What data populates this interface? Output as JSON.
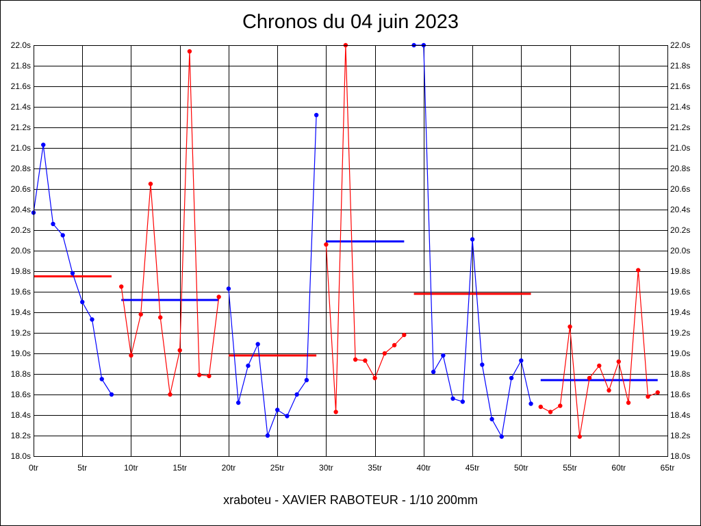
{
  "chart_data": {
    "type": "line",
    "title": "Chronos du 04 juin 2023",
    "footer": "xraboteu - XAVIER RABOTEUR - 1/10 200mm",
    "xlim": [
      0,
      65
    ],
    "ylim": [
      18.0,
      22.0
    ],
    "x_ticks": [
      {
        "value": 0,
        "label": "0tr"
      },
      {
        "value": 5,
        "label": "5tr"
      },
      {
        "value": 10,
        "label": "10tr"
      },
      {
        "value": 15,
        "label": "15tr"
      },
      {
        "value": 20,
        "label": "20tr"
      },
      {
        "value": 25,
        "label": "25tr"
      },
      {
        "value": 30,
        "label": "30tr"
      },
      {
        "value": 35,
        "label": "35tr"
      },
      {
        "value": 40,
        "label": "40tr"
      },
      {
        "value": 45,
        "label": "45tr"
      },
      {
        "value": 50,
        "label": "50tr"
      },
      {
        "value": 55,
        "label": "55tr"
      },
      {
        "value": 60,
        "label": "60tr"
      },
      {
        "value": 65,
        "label": "65tr"
      }
    ],
    "y_ticks": [
      {
        "value": 18.0,
        "label": "18.0s"
      },
      {
        "value": 18.2,
        "label": "18.2s"
      },
      {
        "value": 18.4,
        "label": "18.4s"
      },
      {
        "value": 18.6,
        "label": "18.6s"
      },
      {
        "value": 18.8,
        "label": "18.8s"
      },
      {
        "value": 19.0,
        "label": "19.0s"
      },
      {
        "value": 19.2,
        "label": "19.2s"
      },
      {
        "value": 19.4,
        "label": "19.4s"
      },
      {
        "value": 19.6,
        "label": "19.6s"
      },
      {
        "value": 19.8,
        "label": "19.8s"
      },
      {
        "value": 20.0,
        "label": "20.0s"
      },
      {
        "value": 20.2,
        "label": "20.2s"
      },
      {
        "value": 20.4,
        "label": "20.4s"
      },
      {
        "value": 20.6,
        "label": "20.6s"
      },
      {
        "value": 20.8,
        "label": "20.8s"
      },
      {
        "value": 21.0,
        "label": "21.0s"
      },
      {
        "value": 21.2,
        "label": "21.2s"
      },
      {
        "value": 21.4,
        "label": "21.4s"
      },
      {
        "value": 21.6,
        "label": "21.6s"
      },
      {
        "value": 21.8,
        "label": "21.8s"
      },
      {
        "value": 22.0,
        "label": "22.0s"
      }
    ],
    "grid": true,
    "y_axis_labels": "both sides",
    "series": [
      {
        "color": "#0000ff",
        "x": [
          0,
          1,
          2,
          3,
          4,
          5,
          6,
          7,
          8
        ],
        "y": [
          20.37,
          21.03,
          20.26,
          20.15,
          19.78,
          19.5,
          19.33,
          18.75,
          18.6
        ]
      },
      {
        "color": "#ff0000",
        "x": [
          9,
          10,
          11,
          12,
          13,
          14,
          15,
          16,
          17,
          18,
          19
        ],
        "y": [
          19.65,
          18.98,
          19.38,
          20.65,
          19.35,
          18.6,
          19.03,
          21.94,
          18.79,
          18.78,
          19.55
        ]
      },
      {
        "color": "#0000ff",
        "x": [
          20,
          21,
          22,
          23,
          24,
          25,
          26,
          27,
          28,
          29
        ],
        "y": [
          19.63,
          18.52,
          18.88,
          19.09,
          18.2,
          18.45,
          18.39,
          18.6,
          18.74,
          21.32
        ]
      },
      {
        "color": "#ff0000",
        "x": [
          30,
          31,
          32,
          33,
          34,
          35,
          36,
          37,
          38
        ],
        "y": [
          20.06,
          18.43,
          22.0,
          18.94,
          18.93,
          18.76,
          19.0,
          19.08,
          19.18
        ]
      },
      {
        "color": "#0000ff",
        "x": [
          39,
          40,
          41,
          42,
          43,
          44,
          45,
          46,
          47,
          48,
          49,
          50,
          51
        ],
        "y": [
          22.0,
          22.0,
          18.82,
          18.98,
          18.56,
          18.53,
          20.11,
          18.89,
          18.36,
          18.19,
          18.76,
          18.93,
          18.51
        ]
      },
      {
        "color": "#ff0000",
        "x": [
          52,
          53,
          54,
          55,
          56,
          57,
          58,
          59,
          60,
          61,
          62,
          63,
          64
        ],
        "y": [
          18.48,
          18.43,
          18.49,
          19.26,
          18.19,
          18.76,
          18.88,
          18.64,
          18.92,
          18.52,
          19.81,
          18.58,
          18.62
        ]
      }
    ],
    "averages": [
      {
        "color": "#ff0000",
        "x_start": 0,
        "x_end": 8,
        "y": 19.75
      },
      {
        "color": "#0000ff",
        "x_start": 9,
        "x_end": 19,
        "y": 19.52
      },
      {
        "color": "#ff0000",
        "x_start": 20,
        "x_end": 29,
        "y": 18.98
      },
      {
        "color": "#0000ff",
        "x_start": 30,
        "x_end": 38,
        "y": 20.09
      },
      {
        "color": "#ff0000",
        "x_start": 39,
        "x_end": 51,
        "y": 19.58
      },
      {
        "color": "#0000ff",
        "x_start": 52,
        "x_end": 64,
        "y": 18.74
      }
    ]
  }
}
